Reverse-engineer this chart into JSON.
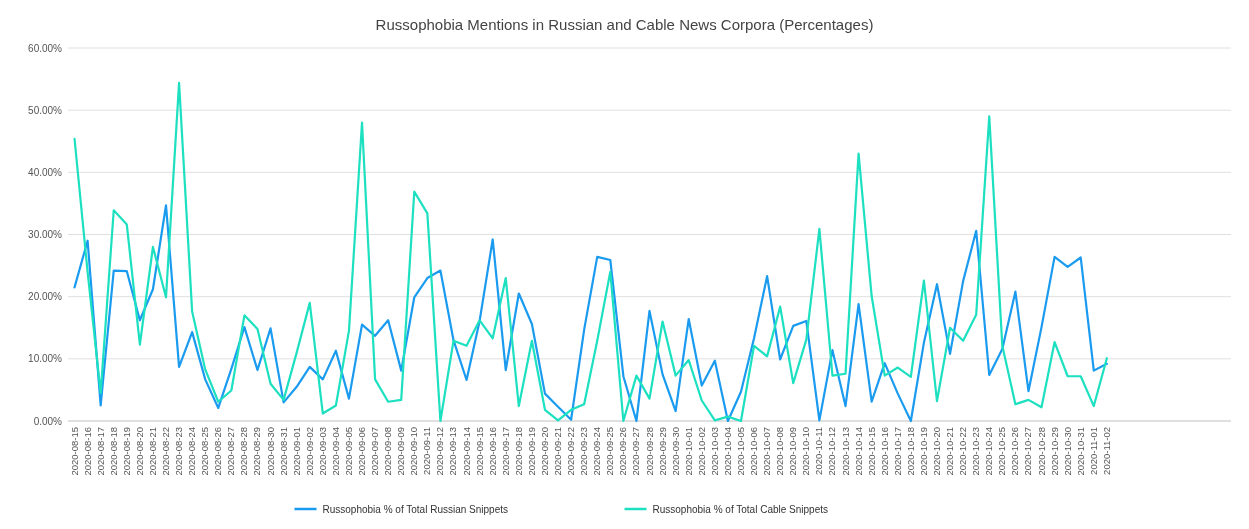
{
  "chart_data": {
    "type": "line",
    "title": "Russophobia Mentions in Russian and Cable News Corpora (Percentages)",
    "categories": [
      "2020-08-15",
      "2020-08-16",
      "2020-08-17",
      "2020-08-18",
      "2020-08-19",
      "2020-08-20",
      "2020-08-21",
      "2020-08-22",
      "2020-08-23",
      "2020-08-24",
      "2020-08-25",
      "2020-08-26",
      "2020-08-27",
      "2020-08-28",
      "2020-08-29",
      "2020-08-30",
      "2020-08-31",
      "2020-09-01",
      "2020-09-02",
      "2020-09-03",
      "2020-09-04",
      "2020-09-05",
      "2020-09-06",
      "2020-09-07",
      "2020-09-08",
      "2020-09-09",
      "2020-09-10",
      "2020-09-11",
      "2020-09-12",
      "2020-09-13",
      "2020-09-14",
      "2020-09-15",
      "2020-09-16",
      "2020-09-17",
      "2020-09-18",
      "2020-09-19",
      "2020-09-20",
      "2020-09-21",
      "2020-09-22",
      "2020-09-23",
      "2020-09-24",
      "2020-09-25",
      "2020-09-26",
      "2020-09-27",
      "2020-09-28",
      "2020-09-29",
      "2020-09-30",
      "2020-10-01",
      "2020-10-02",
      "2020-10-03",
      "2020-10-04",
      "2020-10-05",
      "2020-10-06",
      "2020-10-07",
      "2020-10-08",
      "2020-10-09",
      "2020-10-10",
      "2020-10-11",
      "2020-10-12",
      "2020-10-13",
      "2020-10-14",
      "2020-10-15",
      "2020-10-16",
      "2020-10-17",
      "2020-10-18",
      "2020-10-19",
      "2020-10-20",
      "2020-10-21",
      "2020-10-22",
      "2020-10-23",
      "2020-10-24",
      "2020-10-25",
      "2020-10-26",
      "2020-10-27",
      "2020-10-28",
      "2020-10-29",
      "2020-10-30",
      "2020-10-31",
      "2020-11-01",
      "2020-11-02",
      null,
      null,
      null,
      null,
      null,
      null,
      null,
      null,
      null
    ],
    "series": [
      {
        "name": "Russophobia % of Total Russian Snippets",
        "color": "#1a9bf0",
        "values": [
          21.5,
          29,
          2.5,
          24.2,
          24.1,
          16.2,
          21.2,
          34.7,
          8.7,
          14.3,
          6.7,
          2.1,
          8.4,
          15.1,
          8.2,
          14.9,
          3.0,
          5.5,
          8.7,
          6.7,
          11.3,
          3.6,
          15.5,
          13.7,
          16.2,
          8.1,
          19.9,
          23.0,
          24.2,
          13.0,
          6.6,
          16.1,
          29.2,
          8.2,
          20.5,
          15.6,
          4.4,
          2.3,
          0.2,
          14.7,
          26.4,
          25.9,
          7.2,
          0,
          17.7,
          7.5,
          1.6,
          16.4,
          5.7,
          9.7,
          0,
          4.7,
          13.3,
          23.3,
          9.9,
          15.3,
          16.1,
          0.1,
          11.4,
          2.4,
          18.8,
          3.1,
          9.3,
          4.4,
          0,
          12.6,
          22.0,
          10.8,
          22.5,
          30.6,
          7.4,
          11.6,
          20.8,
          4.8,
          15.1,
          26.4,
          24.8,
          26.3,
          8.1,
          9.2,
          null,
          null,
          null,
          null,
          null,
          null,
          null,
          null,
          null
        ]
      },
      {
        "name": "Russophobia % of Total Cable Snippets",
        "color": "#1de0c0",
        "values": [
          45.4,
          24,
          4.5,
          33.9,
          31.6,
          12.3,
          28.0,
          19.9,
          54.4,
          17.6,
          8.3,
          3.1,
          4.9,
          17.0,
          14.8,
          6.0,
          3.4,
          11.0,
          19.0,
          1.2,
          2.5,
          14.5,
          48.0,
          6.7,
          3.1,
          3.4,
          36.9,
          33.4,
          0,
          12.9,
          12.1,
          16.2,
          13.3,
          23.0,
          2.4,
          12.9,
          1.8,
          0.1,
          1.8,
          2.7,
          12.9,
          24.0,
          0,
          7.3,
          3.6,
          16.0,
          7.3,
          9.8,
          3.3,
          0.1,
          0.7,
          0,
          12.1,
          10.4,
          18.4,
          6.1,
          13.1,
          30.9,
          7.3,
          7.6,
          43.0,
          20.1,
          7.3,
          8.6,
          7.1,
          22.6,
          3.2,
          15.0,
          12.9,
          17.1,
          49.0,
          12.1,
          2.7,
          3.4,
          2.2,
          12.7,
          7.2,
          7.2,
          2.4,
          10.1,
          null,
          null,
          null,
          null,
          null,
          null,
          null,
          null,
          null
        ]
      }
    ],
    "ylim": [
      0,
      60
    ],
    "yticks": [
      {
        "value": 0,
        "label": "0.00%"
      },
      {
        "value": 10,
        "label": "10.00%"
      },
      {
        "value": 20,
        "label": "20.00%"
      },
      {
        "value": 30,
        "label": "30.00%"
      },
      {
        "value": 40,
        "label": "40.00%"
      },
      {
        "value": 50,
        "label": "50.00%"
      },
      {
        "value": 60,
        "label": "60.00%"
      }
    ],
    "grid": "y",
    "legend": "bottom",
    "marker": "none",
    "line_style": "solid"
  }
}
